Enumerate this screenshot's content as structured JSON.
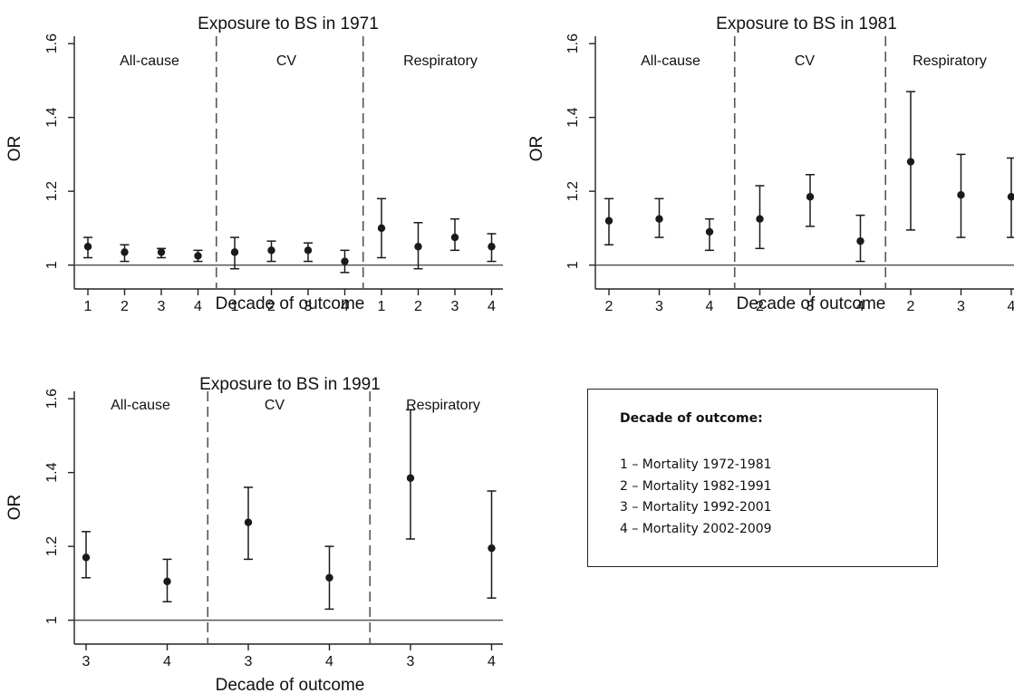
{
  "chart_data": [
    {
      "type": "scatter",
      "title": "Exposure to BS in 1971",
      "xlabel": "Decade of outcome",
      "ylabel": "OR",
      "ylim": [
        0.95,
        1.62
      ],
      "y_ticks": [
        "1",
        "1.2",
        "1.4",
        "1.6"
      ],
      "y_tick_values": [
        1,
        1.2,
        1.4,
        1.6
      ],
      "reference_line": 1,
      "groups": [
        "All-cause",
        "CV",
        "Respiratory"
      ],
      "x_tick_labels": [
        "1",
        "2",
        "3",
        "4",
        "1",
        "2",
        "3",
        "4",
        "1",
        "2",
        "3",
        "4"
      ],
      "points": [
        {
          "group": "All-cause",
          "x": "1",
          "or": 1.05,
          "lo": 1.02,
          "hi": 1.075
        },
        {
          "group": "All-cause",
          "x": "2",
          "or": 1.035,
          "lo": 1.01,
          "hi": 1.055
        },
        {
          "group": "All-cause",
          "x": "3",
          "or": 1.035,
          "lo": 1.02,
          "hi": 1.045
        },
        {
          "group": "All-cause",
          "x": "4",
          "or": 1.025,
          "lo": 1.01,
          "hi": 1.04
        },
        {
          "group": "CV",
          "x": "1",
          "or": 1.035,
          "lo": 0.99,
          "hi": 1.075
        },
        {
          "group": "CV",
          "x": "2",
          "or": 1.04,
          "lo": 1.01,
          "hi": 1.065
        },
        {
          "group": "CV",
          "x": "3",
          "or": 1.04,
          "lo": 1.01,
          "hi": 1.06
        },
        {
          "group": "CV",
          "x": "4",
          "or": 1.01,
          "lo": 0.98,
          "hi": 1.04
        },
        {
          "group": "Respiratory",
          "x": "1",
          "or": 1.1,
          "lo": 1.02,
          "hi": 1.18
        },
        {
          "group": "Respiratory",
          "x": "2",
          "or": 1.05,
          "lo": 0.99,
          "hi": 1.115
        },
        {
          "group": "Respiratory",
          "x": "3",
          "or": 1.075,
          "lo": 1.04,
          "hi": 1.125
        },
        {
          "group": "Respiratory",
          "x": "4",
          "or": 1.05,
          "lo": 1.01,
          "hi": 1.085
        }
      ]
    },
    {
      "type": "scatter",
      "title": "Exposure to BS in 1981",
      "xlabel": "Decade of outcome",
      "ylabel": "OR",
      "ylim": [
        0.95,
        1.62
      ],
      "y_ticks": [
        "1",
        "1.2",
        "1.4",
        "1.6"
      ],
      "y_tick_values": [
        1,
        1.2,
        1.4,
        1.6
      ],
      "reference_line": 1,
      "groups": [
        "All-cause",
        "CV",
        "Respiratory"
      ],
      "x_tick_labels": [
        "2",
        "3",
        "4",
        "2",
        "3",
        "4",
        "2",
        "3",
        "4"
      ],
      "points": [
        {
          "group": "All-cause",
          "x": "2",
          "or": 1.12,
          "lo": 1.055,
          "hi": 1.18
        },
        {
          "group": "All-cause",
          "x": "3",
          "or": 1.125,
          "lo": 1.075,
          "hi": 1.18
        },
        {
          "group": "All-cause",
          "x": "4",
          "or": 1.09,
          "lo": 1.04,
          "hi": 1.125
        },
        {
          "group": "CV",
          "x": "2",
          "or": 1.125,
          "lo": 1.045,
          "hi": 1.215
        },
        {
          "group": "CV",
          "x": "3",
          "or": 1.185,
          "lo": 1.105,
          "hi": 1.245
        },
        {
          "group": "CV",
          "x": "4",
          "or": 1.065,
          "lo": 1.01,
          "hi": 1.135
        },
        {
          "group": "Respiratory",
          "x": "2",
          "or": 1.28,
          "lo": 1.095,
          "hi": 1.47
        },
        {
          "group": "Respiratory",
          "x": "3",
          "or": 1.19,
          "lo": 1.075,
          "hi": 1.3
        },
        {
          "group": "Respiratory",
          "x": "4",
          "or": 1.185,
          "lo": 1.075,
          "hi": 1.29
        }
      ]
    },
    {
      "type": "scatter",
      "title": "Exposure to BS in 1991",
      "xlabel": "Decade of outcome",
      "ylabel": "OR",
      "ylim": [
        0.95,
        1.62
      ],
      "y_ticks": [
        "1",
        "1.2",
        "1.4",
        "1.6"
      ],
      "y_tick_values": [
        1,
        1.2,
        1.4,
        1.6
      ],
      "reference_line": 1,
      "groups": [
        "All-cause",
        "CV",
        "Respiratory"
      ],
      "x_tick_labels": [
        "3",
        "4",
        "3",
        "4",
        "3",
        "4"
      ],
      "points": [
        {
          "group": "All-cause",
          "x": "3",
          "or": 1.17,
          "lo": 1.115,
          "hi": 1.24
        },
        {
          "group": "All-cause",
          "x": "4",
          "or": 1.105,
          "lo": 1.05,
          "hi": 1.165
        },
        {
          "group": "CV",
          "x": "3",
          "or": 1.265,
          "lo": 1.165,
          "hi": 1.36
        },
        {
          "group": "CV",
          "x": "4",
          "or": 1.115,
          "lo": 1.03,
          "hi": 1.2
        },
        {
          "group": "Respiratory",
          "x": "3",
          "or": 1.385,
          "lo": 1.22,
          "hi": 1.57
        },
        {
          "group": "Respiratory",
          "x": "4",
          "or": 1.195,
          "lo": 1.06,
          "hi": 1.35
        }
      ]
    }
  ],
  "legend": {
    "title": "Decade of outcome:",
    "items": [
      "1 – Mortality 1972-1981",
      "2 – Mortality 1982-1991",
      "3 – Mortality 1992-2001",
      "4 – Mortality 2002-2009"
    ]
  },
  "colors": {
    "axis": "#222222",
    "marker": "#1a1a1a",
    "reference": "#555555",
    "divider": "#555555"
  }
}
